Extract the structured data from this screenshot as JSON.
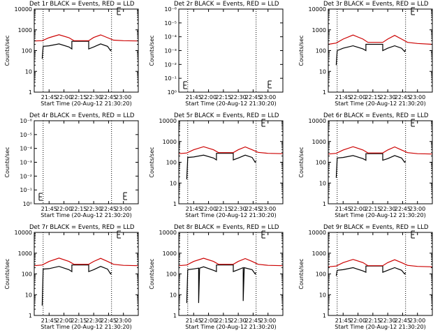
{
  "chart_data": [
    {
      "type": "line",
      "title": "Det 1r BLACK = Events, RED = LLD",
      "xlabel": "Start Time (20-Aug-12 21:30:20)",
      "ylabel": "Counts/sec",
      "yscale": "log",
      "ylim": [
        1,
        10000
      ],
      "ytick_labels": [
        "1",
        "10",
        "100",
        "1000",
        "10000"
      ],
      "xlim": [
        "21:30",
        "23:15"
      ],
      "xtick_labels": [
        "21:45",
        "22:00",
        "22:15",
        "22:30",
        "22:45",
        "23:00"
      ],
      "vlines": [
        "21:39",
        "22:48"
      ],
      "legend_marker": "top-right",
      "series": [
        {
          "color": "#000000",
          "x": [
            "21:30",
            "21:38",
            "21:38",
            "21:39",
            "21:45",
            "21:55",
            "22:05",
            "22:08",
            "22:08",
            "22:25",
            "22:25",
            "22:30",
            "22:37",
            "22:44",
            "22:47",
            "22:48",
            "22:48",
            "23:15"
          ],
          "y": [
            null,
            null,
            40,
            160,
            170,
            210,
            150,
            120,
            280,
            280,
            120,
            150,
            210,
            160,
            100,
            120,
            null,
            null
          ]
        },
        {
          "color": "#cc0000",
          "x": [
            "21:30",
            "21:38",
            "21:45",
            "21:55",
            "22:05",
            "22:10",
            "22:25",
            "22:30",
            "22:37",
            "22:44",
            "22:50",
            "23:00",
            "23:15"
          ],
          "y": [
            290,
            300,
            420,
            580,
            420,
            300,
            300,
            430,
            570,
            420,
            320,
            300,
            290
          ]
        }
      ]
    },
    {
      "type": "line",
      "title": "Det 2r BLACK = Events, RED = LLD",
      "xlabel": "Start Time (20-Aug-12 21:30:20)",
      "ylabel": "Counts/sec",
      "yscale": "log",
      "ylim": [
        1,
        1e-06
      ],
      "ytick_labels": [
        "10⁰",
        "10⁻¹",
        "10⁻²",
        "10⁻³",
        "10⁻⁴",
        "10⁻⁵",
        "10⁻⁶"
      ],
      "xlim": [
        "21:30",
        "23:15"
      ],
      "xtick_labels": [
        "21:45",
        "22:00",
        "22:15",
        "22:30",
        "22:45",
        "23:00"
      ],
      "vlines": [
        "21:39",
        "22:48"
      ],
      "legend_marker": "bottom",
      "series": []
    },
    {
      "type": "line",
      "title": "Det 3r BLACK = Events, RED = LLD",
      "xlabel": "Start Time (20-Aug-12 21:30:20)",
      "ylabel": "Counts/sec",
      "yscale": "log",
      "ylim": [
        1,
        10000
      ],
      "ytick_labels": [
        "1",
        "10",
        "100",
        "1000",
        "10000"
      ],
      "xlim": [
        "21:30",
        "23:15"
      ],
      "xtick_labels": [
        "21:45",
        "22:00",
        "22:15",
        "22:30",
        "22:45",
        "23:00"
      ],
      "vlines": [
        "21:39",
        "22:48"
      ],
      "legend_marker": "top-right",
      "series": [
        {
          "color": "#000000",
          "x": [
            "21:30",
            "21:38",
            "21:38",
            "21:39",
            "21:45",
            "21:55",
            "22:05",
            "22:08",
            "22:08",
            "22:25",
            "22:25",
            "22:30",
            "22:37",
            "22:44",
            "22:47",
            "22:48",
            "22:48",
            "23:15"
          ],
          "y": [
            null,
            null,
            20,
            100,
            130,
            170,
            120,
            100,
            200,
            200,
            100,
            130,
            170,
            130,
            90,
            110,
            null,
            null
          ]
        },
        {
          "color": "#cc0000",
          "x": [
            "21:30",
            "21:38",
            "21:45",
            "21:55",
            "22:05",
            "22:10",
            "22:25",
            "22:30",
            "22:37",
            "22:44",
            "22:50",
            "23:00",
            "23:15"
          ],
          "y": [
            200,
            230,
            360,
            560,
            360,
            250,
            250,
            360,
            540,
            360,
            250,
            220,
            200
          ]
        }
      ]
    },
    {
      "type": "line",
      "title": "Det 4r BLACK = Events, RED = LLD",
      "xlabel": "Start Time (20-Aug-12 21:30:20)",
      "ylabel": "Counts/sec",
      "yscale": "log",
      "ylim": [
        1,
        1e-06
      ],
      "ytick_labels": [
        "10⁰",
        "10⁻¹",
        "10⁻²",
        "10⁻³",
        "10⁻⁴",
        "10⁻⁵",
        "10⁻⁶"
      ],
      "xlim": [
        "21:30",
        "23:15"
      ],
      "xtick_labels": [
        "21:45",
        "22:00",
        "22:15",
        "22:30",
        "22:45",
        "23:00"
      ],
      "vlines": [
        "21:39",
        "22:48"
      ],
      "legend_marker": "bottom",
      "series": []
    },
    {
      "type": "line",
      "title": "Det 5r BLACK = Events, RED = LLD",
      "xlabel": "Start Time (20-Aug-12 21:30:20)",
      "ylabel": "Counts/sec",
      "yscale": "log",
      "ylim": [
        1,
        10000
      ],
      "ytick_labels": [
        "1",
        "10",
        "100",
        "1000",
        "10000"
      ],
      "xlim": [
        "21:30",
        "23:15"
      ],
      "xtick_labels": [
        "21:45",
        "22:00",
        "22:15",
        "22:30",
        "22:45",
        "23:00"
      ],
      "vlines": [
        "21:39",
        "22:48"
      ],
      "legend_marker": "top-right",
      "series": [
        {
          "color": "#000000",
          "x": [
            "21:30",
            "21:38",
            "21:38",
            "21:39",
            "21:45",
            "21:55",
            "22:05",
            "22:08",
            "22:08",
            "22:25",
            "22:25",
            "22:30",
            "22:37",
            "22:44",
            "22:47",
            "22:48",
            "22:48",
            "23:15"
          ],
          "y": [
            null,
            null,
            15,
            170,
            180,
            220,
            160,
            130,
            270,
            270,
            130,
            160,
            220,
            170,
            100,
            120,
            null,
            null
          ]
        },
        {
          "color": "#cc0000",
          "x": [
            "21:30",
            "21:38",
            "21:45",
            "21:55",
            "22:05",
            "22:10",
            "22:25",
            "22:30",
            "22:37",
            "22:44",
            "22:50",
            "23:00",
            "23:15"
          ],
          "y": [
            260,
            280,
            400,
            560,
            400,
            290,
            290,
            400,
            550,
            400,
            300,
            270,
            260
          ]
        }
      ]
    },
    {
      "type": "line",
      "title": "Det 6r BLACK = Events, RED = LLD",
      "xlabel": "Start Time (20-Aug-12 21:30:20)",
      "ylabel": "Counts/sec",
      "yscale": "log",
      "ylim": [
        1,
        10000
      ],
      "ytick_labels": [
        "1",
        "10",
        "100",
        "1000",
        "10000"
      ],
      "xlim": [
        "21:30",
        "23:15"
      ],
      "xtick_labels": [
        "21:45",
        "22:00",
        "22:15",
        "22:30",
        "22:45",
        "23:00"
      ],
      "vlines": [
        "21:39",
        "22:48"
      ],
      "legend_marker": "top-right",
      "series": [
        {
          "color": "#000000",
          "x": [
            "21:30",
            "21:38",
            "21:38",
            "21:39",
            "21:45",
            "21:55",
            "22:05",
            "22:08",
            "22:08",
            "22:25",
            "22:25",
            "22:30",
            "22:37",
            "22:44",
            "22:47",
            "22:48",
            "22:48",
            "23:15"
          ],
          "y": [
            null,
            null,
            18,
            160,
            170,
            210,
            150,
            125,
            260,
            260,
            125,
            150,
            210,
            160,
            100,
            115,
            null,
            null
          ]
        },
        {
          "color": "#cc0000",
          "x": [
            "21:30",
            "21:38",
            "21:45",
            "21:55",
            "22:05",
            "22:10",
            "22:25",
            "22:30",
            "22:37",
            "22:44",
            "22:50",
            "23:00",
            "23:15"
          ],
          "y": [
            250,
            270,
            390,
            560,
            390,
            280,
            280,
            390,
            550,
            390,
            290,
            260,
            250
          ]
        }
      ]
    },
    {
      "type": "line",
      "title": "Det 7r BLACK = Events, RED = LLD",
      "xlabel": "Start Time (20-Aug-12 21:30:20)",
      "ylabel": "Counts/sec",
      "yscale": "log",
      "ylim": [
        1,
        10000
      ],
      "ytick_labels": [
        "1",
        "10",
        "100",
        "1000",
        "10000"
      ],
      "xlim": [
        "21:30",
        "23:15"
      ],
      "xtick_labels": [
        "21:45",
        "22:00",
        "22:15",
        "22:30",
        "22:45",
        "23:00"
      ],
      "vlines": [
        "21:39",
        "22:48"
      ],
      "legend_marker": "top-right",
      "series": [
        {
          "color": "#000000",
          "x": [
            "21:30",
            "21:38",
            "21:38",
            "21:39",
            "21:45",
            "21:55",
            "22:05",
            "22:08",
            "22:08",
            "22:25",
            "22:25",
            "22:30",
            "22:37",
            "22:44",
            "22:47",
            "22:48",
            "22:48",
            "23:15"
          ],
          "y": [
            null,
            null,
            3,
            170,
            180,
            230,
            160,
            130,
            270,
            270,
            130,
            160,
            230,
            170,
            100,
            120,
            null,
            null
          ]
        },
        {
          "color": "#cc0000",
          "x": [
            "21:30",
            "21:38",
            "21:45",
            "21:55",
            "22:05",
            "22:10",
            "22:25",
            "22:30",
            "22:37",
            "22:44",
            "22:50",
            "23:00",
            "23:15"
          ],
          "y": [
            250,
            270,
            400,
            580,
            400,
            290,
            290,
            400,
            560,
            400,
            290,
            260,
            250
          ]
        }
      ]
    },
    {
      "type": "line",
      "title": "Det 8r BLACK = Events, RED = LLD",
      "xlabel": "Start Time (20-Aug-12 21:30:20)",
      "ylabel": "Counts/sec",
      "yscale": "log",
      "ylim": [
        1,
        10000
      ],
      "ytick_labels": [
        "1",
        "10",
        "100",
        "1000",
        "10000"
      ],
      "xlim": [
        "21:30",
        "23:15"
      ],
      "xtick_labels": [
        "21:45",
        "22:00",
        "22:15",
        "22:30",
        "22:45",
        "23:00"
      ],
      "vlines": [
        "21:39",
        "22:48"
      ],
      "legend_marker": "top-right",
      "series": [
        {
          "color": "#000000",
          "x": [
            "21:30",
            "21:38",
            "21:38",
            "21:39",
            "21:45",
            "21:50",
            "21:50",
            "21:51",
            "21:55",
            "22:05",
            "22:08",
            "22:08",
            "22:25",
            "22:25",
            "22:30",
            "22:35",
            "22:35",
            "22:36",
            "22:44",
            "22:47",
            "22:48",
            "22:48",
            "23:15"
          ],
          "y": [
            null,
            null,
            4,
            160,
            175,
            190,
            4,
            190,
            220,
            150,
            130,
            270,
            270,
            130,
            160,
            200,
            5,
            200,
            160,
            100,
            120,
            null,
            null
          ]
        },
        {
          "color": "#cc0000",
          "x": [
            "21:30",
            "21:38",
            "21:45",
            "21:55",
            "22:05",
            "22:10",
            "22:25",
            "22:30",
            "22:37",
            "22:44",
            "22:50",
            "23:00",
            "23:15"
          ],
          "y": [
            250,
            270,
            400,
            570,
            400,
            290,
            290,
            400,
            550,
            400,
            290,
            260,
            250
          ]
        }
      ]
    },
    {
      "type": "line",
      "title": "Det 9r BLACK = Events, RED = LLD",
      "xlabel": "Start Time (20-Aug-12 21:30:20)",
      "ylabel": "Counts/sec",
      "yscale": "log",
      "ylim": [
        1,
        10000
      ],
      "ytick_labels": [
        "1",
        "10",
        "100",
        "1000",
        "10000"
      ],
      "xlim": [
        "21:30",
        "23:15"
      ],
      "xtick_labels": [
        "21:45",
        "22:00",
        "22:15",
        "22:30",
        "22:45",
        "23:00"
      ],
      "vlines": [
        "21:39",
        "22:48"
      ],
      "legend_marker": "top-right",
      "series": [
        {
          "color": "#000000",
          "x": [
            "21:30",
            "21:38",
            "21:38",
            "21:39",
            "21:45",
            "21:55",
            "22:05",
            "22:08",
            "22:08",
            "22:25",
            "22:25",
            "22:30",
            "22:37",
            "22:44",
            "22:47",
            "22:48",
            "22:48",
            "23:15"
          ],
          "y": [
            null,
            null,
            80,
            150,
            160,
            200,
            140,
            120,
            240,
            240,
            120,
            150,
            200,
            150,
            100,
            115,
            null,
            null
          ]
        },
        {
          "color": "#cc0000",
          "x": [
            "21:30",
            "21:38",
            "21:45",
            "21:55",
            "22:05",
            "22:10",
            "22:25",
            "22:30",
            "22:37",
            "22:44",
            "22:50",
            "23:00",
            "23:15"
          ],
          "y": [
            220,
            240,
            350,
            500,
            350,
            250,
            250,
            350,
            480,
            350,
            260,
            230,
            220
          ]
        }
      ]
    }
  ]
}
